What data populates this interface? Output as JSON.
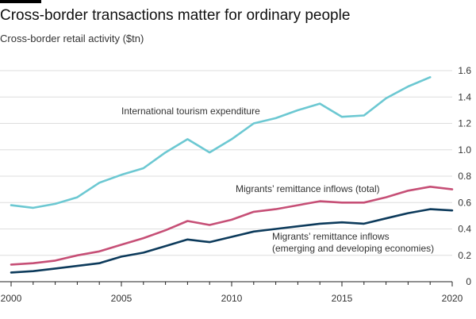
{
  "header": {
    "title": "Cross-border transactions matter for ordinary people",
    "subtitle": "Cross-border retail activity ($tn)"
  },
  "colors": {
    "tourism": "#6cc8d2",
    "remittance_total": "#c64f76",
    "remittance_emerging": "#0c3a5b",
    "grid": "#dedede",
    "axis": "#222222"
  },
  "chart_data": {
    "type": "line",
    "x": [
      2000,
      2001,
      2002,
      2003,
      2004,
      2005,
      2006,
      2007,
      2008,
      2009,
      2010,
      2011,
      2012,
      2013,
      2014,
      2015,
      2016,
      2017,
      2018,
      2019,
      2020
    ],
    "xlim": [
      2000,
      2020
    ],
    "ylim": [
      0,
      1.6
    ],
    "xticks": [
      "2000",
      "2005",
      "2010",
      "2015",
      "2020"
    ],
    "yticks": [
      "0",
      "0.2",
      "0.4",
      "0.6",
      "0.8",
      "1.0",
      "1.2",
      "1.4",
      "1.6"
    ],
    "grid": "horizontal",
    "series": [
      {
        "name": "International tourism expenditure",
        "key": "tourism",
        "values": [
          0.58,
          0.56,
          0.59,
          0.64,
          0.75,
          0.81,
          0.86,
          0.98,
          1.08,
          0.98,
          1.08,
          1.2,
          1.24,
          1.3,
          1.35,
          1.25,
          1.26,
          1.39,
          1.48,
          1.55,
          null
        ]
      },
      {
        "name": "Migrants' remittance inflows (total)",
        "key": "remittance_total",
        "values": [
          0.13,
          0.14,
          0.16,
          0.2,
          0.23,
          0.28,
          0.33,
          0.39,
          0.46,
          0.43,
          0.47,
          0.53,
          0.55,
          0.58,
          0.61,
          0.6,
          0.6,
          0.64,
          0.69,
          0.72,
          0.7
        ]
      },
      {
        "name": "Migrants' remittance inflows (emerging and developing economies)",
        "key": "remittance_emerging",
        "values": [
          0.07,
          0.08,
          0.1,
          0.12,
          0.14,
          0.19,
          0.22,
          0.27,
          0.32,
          0.3,
          0.34,
          0.38,
          0.4,
          0.42,
          0.44,
          0.45,
          0.44,
          0.48,
          0.52,
          0.55,
          0.54
        ]
      }
    ],
    "annotations": [
      {
        "key": "tourism",
        "lines": [
          "International tourism expenditure"
        ]
      },
      {
        "key": "remittance_total",
        "lines": [
          "Migrants’ remittance inflows (total)"
        ]
      },
      {
        "key": "remittance_emerging",
        "lines": [
          "Migrants’ remittance inflows",
          "(emerging and developing economies)"
        ]
      }
    ]
  }
}
